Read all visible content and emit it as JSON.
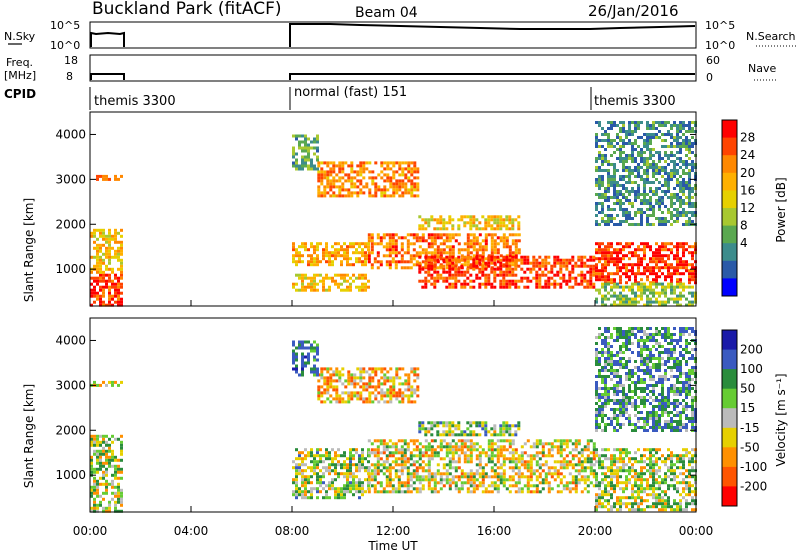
{
  "header": {
    "station": "Buckland Park (fitACF)",
    "beam": "Beam 04",
    "date": "26/Jan/2016"
  },
  "nsky": {
    "label": "N.Sky",
    "ticks": [
      "10^5",
      "10^0"
    ],
    "right_label": "N.Search"
  },
  "freq": {
    "label_top": "Freq.",
    "label_unit": "[MHz]",
    "ticks": [
      "18",
      "8"
    ],
    "right_ticks": [
      "60",
      "0"
    ],
    "right_label": "Nave"
  },
  "cpid": {
    "label": "CPID",
    "segments": [
      {
        "start_hr": 0,
        "label": "themis 3300"
      },
      {
        "start_hr": 8,
        "label": "normal (fast) 151"
      },
      {
        "start_hr": 20,
        "label": "themis 3300"
      }
    ]
  },
  "x_axis": {
    "label": "Time UT",
    "ticks": [
      "00:00",
      "04:00",
      "08:00",
      "12:00",
      "16:00",
      "20:00",
      "00:00"
    ]
  },
  "y_axis": {
    "label": "Slant Range [km]",
    "ticks": [
      "1000",
      "2000",
      "3000",
      "4000"
    ]
  },
  "power_bar": {
    "label": "Power [dB]",
    "ticks": [
      "28",
      "24",
      "20",
      "16",
      "12",
      "8",
      "4"
    ],
    "colors": [
      "#ff0000",
      "#ff4400",
      "#ff8800",
      "#ffb000",
      "#e6d000",
      "#a8c830",
      "#5aa850",
      "#3c8c8c",
      "#2a5aa8",
      "#0000ff"
    ]
  },
  "velocity_bar": {
    "label": "Velocity [m s⁻¹]",
    "ticks": [
      "200",
      "100",
      "50",
      "15",
      "-15",
      "-50",
      "-100",
      "-200"
    ],
    "colors": [
      "#1a1aa8",
      "#3a5ac0",
      "#2a8c3c",
      "#66cc33",
      "#bbbbbb",
      "#e6d000",
      "#ff9000",
      "#ff5500",
      "#ff0000"
    ]
  },
  "chart_data": [
    {
      "type": "heatmap",
      "panel": "power",
      "x_unit": "hours UT",
      "y_unit": "km",
      "xlim": [
        0,
        24
      ],
      "ylim": [
        180,
        4500
      ],
      "zlim": [
        0,
        30
      ],
      "data_blocks": [
        {
          "t": [
            0,
            1.2
          ],
          "r": [
            180,
            900
          ],
          "z": 27
        },
        {
          "t": [
            0,
            1.2
          ],
          "r": [
            900,
            1900
          ],
          "z": 18
        },
        {
          "t": [
            0,
            1.2
          ],
          "r": [
            3000,
            3100
          ],
          "z": 22
        },
        {
          "t": [
            8,
            11
          ],
          "r": [
            500,
            900
          ],
          "z": 18
        },
        {
          "t": [
            8,
            11
          ],
          "r": [
            1100,
            1600
          ],
          "z": 20
        },
        {
          "t": [
            9,
            13
          ],
          "r": [
            2600,
            3400
          ],
          "z": 22
        },
        {
          "t": [
            8,
            9
          ],
          "r": [
            3200,
            4000
          ],
          "z": 10
        },
        {
          "t": [
            11,
            17
          ],
          "r": [
            1000,
            1800
          ],
          "z": 23
        },
        {
          "t": [
            13,
            20
          ],
          "r": [
            600,
            1300
          ],
          "z": 26
        },
        {
          "t": [
            13,
            17
          ],
          "r": [
            1900,
            2200
          ],
          "z": 18
        },
        {
          "t": [
            20,
            24
          ],
          "r": [
            700,
            1600
          ],
          "z": 27
        },
        {
          "t": [
            20,
            24
          ],
          "r": [
            200,
            700
          ],
          "z": 12
        },
        {
          "t": [
            20,
            24
          ],
          "r": [
            2000,
            4300
          ],
          "z": 8
        }
      ]
    },
    {
      "type": "heatmap",
      "panel": "velocity",
      "x_unit": "hours UT",
      "y_unit": "km",
      "xlim": [
        0,
        24
      ],
      "ylim": [
        180,
        4500
      ],
      "zlim": [
        -250,
        250
      ],
      "data_blocks": [
        {
          "t": [
            0,
            1.2
          ],
          "r": [
            180,
            1900
          ],
          "z": 0
        },
        {
          "t": [
            0,
            1.2
          ],
          "r": [
            3000,
            3100
          ],
          "z": -30
        },
        {
          "t": [
            8,
            11
          ],
          "r": [
            500,
            1600
          ],
          "z": 20
        },
        {
          "t": [
            9,
            13
          ],
          "r": [
            2600,
            3400
          ],
          "z": -60
        },
        {
          "t": [
            8,
            9
          ],
          "r": [
            3200,
            4000
          ],
          "z": 120
        },
        {
          "t": [
            11,
            20
          ],
          "r": [
            600,
            1800
          ],
          "z": -20
        },
        {
          "t": [
            13,
            17
          ],
          "r": [
            1900,
            2200
          ],
          "z": 30
        },
        {
          "t": [
            20,
            24
          ],
          "r": [
            200,
            1600
          ],
          "z": 10
        },
        {
          "t": [
            20,
            24
          ],
          "r": [
            2000,
            4300
          ],
          "z": 80
        }
      ]
    }
  ]
}
